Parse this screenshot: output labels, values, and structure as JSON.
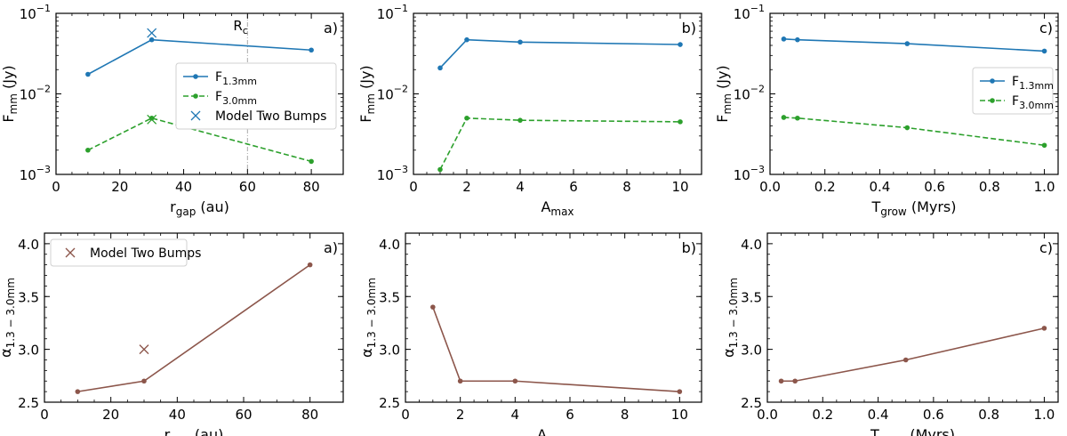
{
  "figure": {
    "description_free": true
  },
  "chart_data": [
    {
      "type": "line",
      "yscale": "log",
      "panel_label": "a)",
      "xlim": [
        0,
        90
      ],
      "ylim": [
        0.001,
        0.1
      ],
      "xticks": [
        0,
        20,
        40,
        60,
        80
      ],
      "yticks": [
        0.001,
        0.01,
        0.1
      ],
      "ytick_labels": [
        {
          "base": "10",
          "exp": "−3"
        },
        {
          "base": "10",
          "exp": "−2"
        },
        {
          "base": "10",
          "exp": "−1"
        }
      ],
      "xlabel": {
        "main": "r",
        "sub": "gap",
        "rest": " (au)"
      },
      "ylabel": {
        "main": "F",
        "sub": "mm",
        "rest": " (Jy)"
      },
      "vline": {
        "x": 60,
        "label_main": "R",
        "label_sub": "c",
        "color": "#aaaaaa"
      },
      "series": [
        {
          "name": "F1.3mm",
          "label_main": "F",
          "label_sub": "1.3mm",
          "color": "#1f77b4",
          "dash": "solid",
          "x": [
            10,
            30,
            80
          ],
          "values": [
            0.0175,
            0.047,
            0.035
          ]
        },
        {
          "name": "F3.0mm",
          "label_main": "F",
          "label_sub": "3.0mm",
          "color": "#2ca02c",
          "dash": "dashed",
          "x": [
            10,
            30,
            80
          ],
          "values": [
            0.002,
            0.005,
            0.00145
          ]
        }
      ],
      "markers": [
        {
          "name": "Model Two Bumps",
          "color": "#1f77b4",
          "points": [
            [
              30,
              0.057
            ]
          ]
        },
        {
          "name": "",
          "color": "#2ca02c",
          "points": [
            [
              30,
              0.0048
            ]
          ]
        }
      ],
      "legend": {
        "position": "center-right",
        "entries": [
          {
            "kind": "line",
            "color": "#1f77b4",
            "dash": "solid",
            "main": "F",
            "sub": "1.3mm"
          },
          {
            "kind": "line",
            "color": "#2ca02c",
            "dash": "dashed",
            "main": "F",
            "sub": "3.0mm"
          },
          {
            "kind": "x",
            "color": "#1f77b4",
            "main": "Model Two Bumps",
            "sub": ""
          }
        ]
      }
    },
    {
      "type": "line",
      "yscale": "log",
      "panel_label": "b)",
      "xlim": [
        0,
        10.8
      ],
      "ylim": [
        0.001,
        0.1
      ],
      "xticks": [
        0,
        2,
        4,
        6,
        8,
        10
      ],
      "yticks": [
        0.001,
        0.01,
        0.1
      ],
      "ytick_labels": [
        {
          "base": "10",
          "exp": "−3"
        },
        {
          "base": "10",
          "exp": "−2"
        },
        {
          "base": "10",
          "exp": "−1"
        }
      ],
      "xlabel": {
        "main": "A",
        "sub": "max",
        "rest": ""
      },
      "ylabel": {
        "main": "F",
        "sub": "mm",
        "rest": " (Jy)"
      },
      "series": [
        {
          "name": "F1.3mm",
          "color": "#1f77b4",
          "dash": "solid",
          "x": [
            1,
            2,
            4,
            10
          ],
          "values": [
            0.021,
            0.047,
            0.044,
            0.041
          ]
        },
        {
          "name": "F3.0mm",
          "color": "#2ca02c",
          "dash": "dashed",
          "x": [
            1,
            2,
            4,
            10
          ],
          "values": [
            0.00115,
            0.005,
            0.0047,
            0.0045
          ]
        }
      ]
    },
    {
      "type": "line",
      "yscale": "log",
      "panel_label": "c)",
      "xlim": [
        0,
        1.05
      ],
      "ylim": [
        0.001,
        0.1
      ],
      "xticks": [
        0,
        0.2,
        0.4,
        0.6,
        0.8,
        1.0
      ],
      "xtick_labels": [
        "0.0",
        "0.2",
        "0.4",
        "0.6",
        "0.8",
        "1.0"
      ],
      "yticks": [
        0.001,
        0.01,
        0.1
      ],
      "ytick_labels": [
        {
          "base": "10",
          "exp": "−3"
        },
        {
          "base": "10",
          "exp": "−2"
        },
        {
          "base": "10",
          "exp": "−1"
        }
      ],
      "xlabel": {
        "main": "T",
        "sub": "grow",
        "rest": " (Myrs)"
      },
      "ylabel": {
        "main": "F",
        "sub": "mm",
        "rest": " (Jy)"
      },
      "series": [
        {
          "name": "F1.3mm",
          "color": "#1f77b4",
          "dash": "solid",
          "x": [
            0.05,
            0.1,
            0.5,
            1.0
          ],
          "values": [
            0.048,
            0.047,
            0.042,
            0.034
          ]
        },
        {
          "name": "F3.0mm",
          "color": "#2ca02c",
          "dash": "dashed",
          "x": [
            0.05,
            0.1,
            0.5,
            1.0
          ],
          "values": [
            0.0051,
            0.005,
            0.0038,
            0.0023
          ]
        }
      ],
      "legend": {
        "position": "center-right",
        "entries": [
          {
            "kind": "line",
            "color": "#1f77b4",
            "dash": "solid",
            "main": "F",
            "sub": "1.3mm"
          },
          {
            "kind": "line",
            "color": "#2ca02c",
            "dash": "dashed",
            "main": "F",
            "sub": "3.0mm"
          }
        ]
      }
    },
    {
      "type": "line",
      "yscale": "linear",
      "panel_label": "a)",
      "xlim": [
        0,
        90
      ],
      "ylim": [
        2.5,
        4.1
      ],
      "xticks": [
        0,
        20,
        40,
        60,
        80
      ],
      "yticks": [
        2.5,
        3.0,
        3.5,
        4.0
      ],
      "ytick_labels": [
        "2.5",
        "3.0",
        "3.5",
        "4.0"
      ],
      "xlabel": {
        "main": "r",
        "sub": "gap",
        "rest": " (au)"
      },
      "ylabel": {
        "main": "α",
        "sub": "1.3 − 3.0mm",
        "rest": ""
      },
      "series": [
        {
          "name": "alpha",
          "color": "#8c564b",
          "dash": "solid",
          "x": [
            10,
            30,
            80
          ],
          "values": [
            2.6,
            2.7,
            3.8
          ]
        }
      ],
      "markers": [
        {
          "name": "Model Two Bumps",
          "color": "#8c564b",
          "points": [
            [
              30,
              3.0
            ]
          ]
        }
      ],
      "legend": {
        "position": "top-left",
        "entries": [
          {
            "kind": "x",
            "color": "#8c564b",
            "main": "Model Two Bumps",
            "sub": ""
          }
        ]
      }
    },
    {
      "type": "line",
      "yscale": "linear",
      "panel_label": "b)",
      "xlim": [
        0,
        10.8
      ],
      "ylim": [
        2.5,
        4.1
      ],
      "xticks": [
        0,
        2,
        4,
        6,
        8,
        10
      ],
      "yticks": [
        2.5,
        3.0,
        3.5,
        4.0
      ],
      "ytick_labels": [
        "2.5",
        "3.0",
        "3.5",
        "4.0"
      ],
      "xlabel": {
        "main": "A",
        "sub": "max",
        "rest": ""
      },
      "ylabel": {
        "main": "α",
        "sub": "1.3 − 3.0mm",
        "rest": ""
      },
      "series": [
        {
          "name": "alpha",
          "color": "#8c564b",
          "dash": "solid",
          "x": [
            1,
            2,
            4,
            10
          ],
          "values": [
            3.4,
            2.7,
            2.7,
            2.6
          ]
        }
      ]
    },
    {
      "type": "line",
      "yscale": "linear",
      "panel_label": "c)",
      "xlim": [
        0,
        1.05
      ],
      "ylim": [
        2.5,
        4.1
      ],
      "xticks": [
        0,
        0.2,
        0.4,
        0.6,
        0.8,
        1.0
      ],
      "xtick_labels": [
        "0.0",
        "0.2",
        "0.4",
        "0.6",
        "0.8",
        "1.0"
      ],
      "yticks": [
        2.5,
        3.0,
        3.5,
        4.0
      ],
      "ytick_labels": [
        "2.5",
        "3.0",
        "3.5",
        "4.0"
      ],
      "xlabel": {
        "main": "T",
        "sub": "grow",
        "rest": " (Myrs)"
      },
      "ylabel": {
        "main": "α",
        "sub": "1.3 − 3.0mm",
        "rest": ""
      },
      "series": [
        {
          "name": "alpha",
          "color": "#8c564b",
          "dash": "solid",
          "x": [
            0.05,
            0.1,
            0.5,
            1.0
          ],
          "values": [
            2.7,
            2.7,
            2.9,
            3.2
          ]
        }
      ]
    }
  ]
}
